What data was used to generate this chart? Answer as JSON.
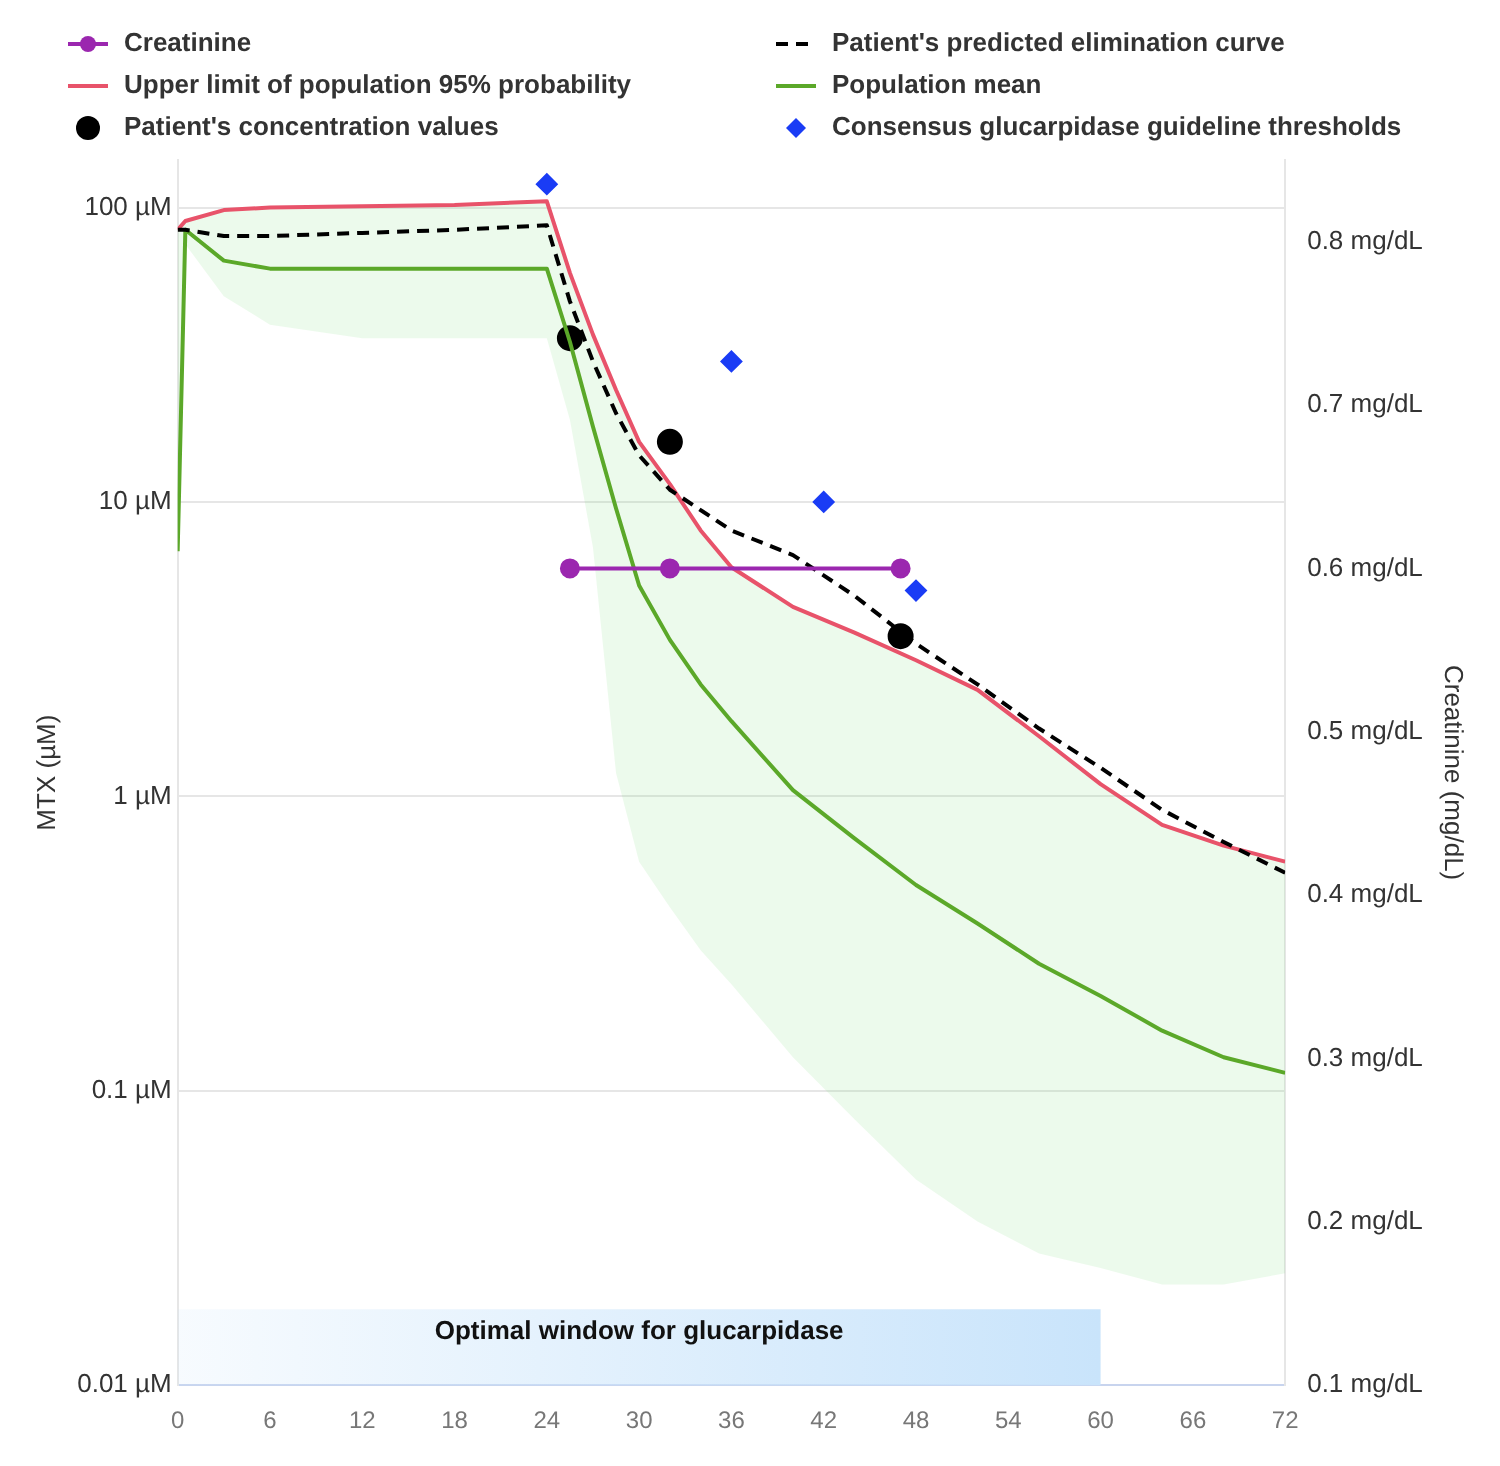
{
  "chart_data": {
    "type": "line",
    "ylabel": "MTX (µM)",
    "y2label": "Creatinine (mg/dL)",
    "xlim": [
      0,
      72
    ],
    "xticks": [
      0,
      6,
      12,
      18,
      24,
      30,
      36,
      42,
      48,
      54,
      60,
      66,
      72
    ],
    "log": "y",
    "ylim": [
      0.01,
      145
    ],
    "yticks": [
      {
        "value": 0.01,
        "label": "0.01 µM"
      },
      {
        "value": 0.1,
        "label": "0.1 µM"
      },
      {
        "value": 1,
        "label": "1 µM"
      },
      {
        "value": 10,
        "label": "10 µM"
      },
      {
        "value": 100,
        "label": "100 µM"
      }
    ],
    "y2lim": [
      0.1,
      0.85
    ],
    "y2ticks": [
      {
        "value": 0.1,
        "label": "0.1 mg/dL"
      },
      {
        "value": 0.2,
        "label": "0.2 mg/dL"
      },
      {
        "value": 0.3,
        "label": "0.3 mg/dL"
      },
      {
        "value": 0.4,
        "label": "0.4 mg/dL"
      },
      {
        "value": 0.5,
        "label": "0.5 mg/dL"
      },
      {
        "value": 0.6,
        "label": "0.6 mg/dL"
      },
      {
        "value": 0.7,
        "label": "0.7 mg/dL"
      },
      {
        "value": 0.8,
        "label": "0.8 mg/dL"
      }
    ],
    "grid": "y",
    "legend": "top",
    "bands": [
      {
        "axis": "x",
        "from": 0,
        "to": 60,
        "label": "Optimal window for glucarpidase",
        "color": "#c9e4fb"
      }
    ],
    "series": [
      {
        "name": "Creatinine",
        "type": "line",
        "axis": "y2",
        "color": "#9b27af",
        "marker": "circle",
        "x": [
          25.5,
          32,
          47
        ],
        "values": [
          0.6,
          0.6,
          0.6
        ]
      },
      {
        "name": "Patient's predicted elimination curve",
        "type": "line",
        "color": "#000000",
        "line_style": "dashed",
        "marker": "none",
        "x": [
          0,
          0.5,
          3,
          6,
          12,
          18,
          24,
          25.5,
          27,
          28.5,
          30,
          32,
          36,
          40,
          44,
          48,
          52,
          56,
          60,
          64,
          68,
          72
        ],
        "values": [
          84,
          84,
          80,
          80,
          82,
          84,
          87,
          48,
          30,
          20,
          14.4,
          11,
          8,
          6.6,
          4.8,
          3.3,
          2.4,
          1.7,
          1.25,
          0.9,
          0.7,
          0.55
        ]
      },
      {
        "name": "Upper limit of population 95% probability",
        "type": "line",
        "color": "#e8536a",
        "marker": "none",
        "x": [
          0,
          0.5,
          3,
          6,
          12,
          18,
          24,
          25.5,
          27,
          28.5,
          30,
          32,
          34,
          36,
          40,
          44,
          48,
          52,
          56,
          60,
          64,
          68,
          72
        ],
        "values": [
          84,
          90,
          98,
          100,
          101,
          102,
          105,
          60,
          37,
          24,
          16,
          11.5,
          8,
          6,
          4.4,
          3.6,
          2.9,
          2.3,
          1.6,
          1.1,
          0.8,
          0.68,
          0.6
        ]
      },
      {
        "name": "Population mean",
        "type": "line",
        "color": "#5ba829",
        "marker": "none",
        "x": [
          0,
          0.5,
          3,
          6,
          12,
          18,
          24,
          25.5,
          27,
          28.5,
          30,
          32,
          34,
          36,
          40,
          44,
          48,
          52,
          56,
          60,
          64,
          68,
          72
        ],
        "values": [
          6.8,
          84,
          66,
          62,
          62,
          62,
          62,
          35,
          18,
          9.5,
          5.2,
          3.4,
          2.4,
          1.8,
          1.05,
          0.72,
          0.5,
          0.37,
          0.27,
          0.21,
          0.16,
          0.13,
          0.115
        ],
        "lower": [
          6.8,
          75,
          50,
          40,
          36,
          36,
          36,
          19,
          7,
          1.2,
          0.6,
          0.42,
          0.3,
          0.23,
          0.13,
          0.08,
          0.05,
          0.036,
          0.028,
          0.025,
          0.022,
          0.022,
          0.024
        ],
        "upper": [
          84,
          90,
          98,
          100,
          101,
          102,
          105,
          60,
          37,
          24,
          16,
          11.5,
          8,
          6,
          4.4,
          3.6,
          2.9,
          2.3,
          1.6,
          1.1,
          0.8,
          0.68,
          0.6
        ]
      },
      {
        "name": "Patient's concentration values",
        "type": "scatter",
        "color": "#000000",
        "marker": "circle",
        "x": [
          25.5,
          32,
          47
        ],
        "values": [
          36,
          16,
          3.5
        ]
      },
      {
        "name": "Consensus glucarpidase guideline thresholds",
        "type": "scatter",
        "color": "#1a3cf5",
        "marker": "diamond",
        "x": [
          24,
          36,
          42,
          48
        ],
        "values": [
          120,
          30,
          10,
          5
        ]
      }
    ]
  }
}
